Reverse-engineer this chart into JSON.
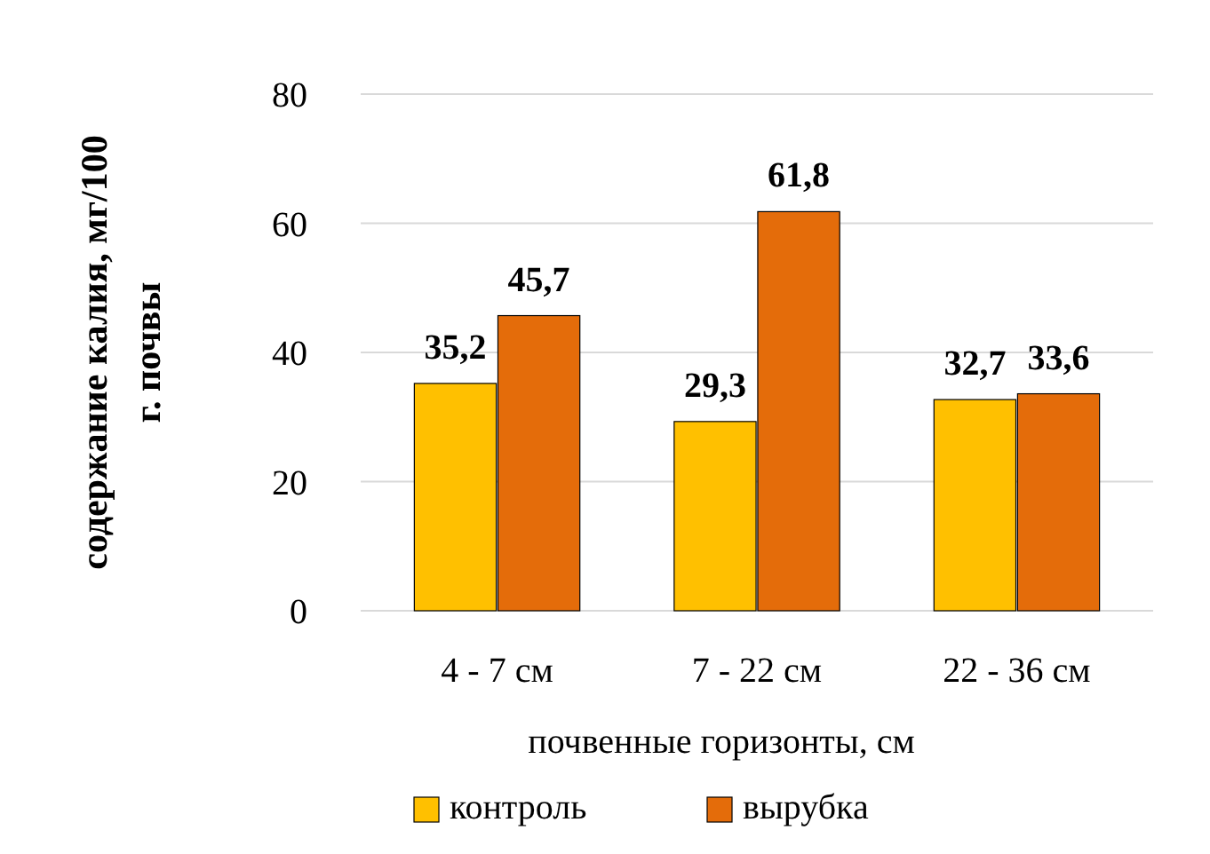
{
  "chart_data": {
    "type": "bar",
    "xlabel": "почвенные горизонты, см",
    "ylabel": "содержание калия, мг/100 г. почвы",
    "categories": [
      "4 - 7 см",
      "7 - 22 см",
      "22 - 36 см"
    ],
    "series": [
      {
        "name": "контроль",
        "color": "#ffc000",
        "values": [
          35.2,
          29.3,
          32.7
        ],
        "value_labels": [
          "35,2",
          "29,3",
          "32,7"
        ]
      },
      {
        "name": "вырубка",
        "color": "#e46c0a",
        "values": [
          45.7,
          61.8,
          33.6
        ],
        "value_labels": [
          "45,7",
          "61,8",
          "33,6"
        ]
      }
    ],
    "ylim": [
      0,
      80
    ],
    "yticks": [
      0,
      20,
      40,
      60,
      80
    ],
    "grid": "y",
    "legend": "bottom"
  }
}
